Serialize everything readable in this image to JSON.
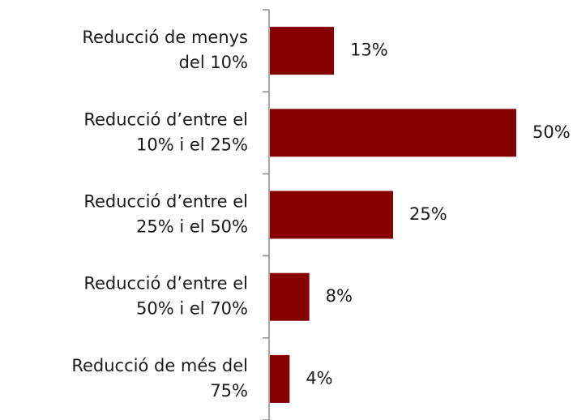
{
  "chart_data": {
    "type": "bar",
    "orientation": "horizontal",
    "categories": [
      "Reducció de menys\ndel 10%",
      "Reducció d’entre el\n10% i el 25%",
      "Reducció d’entre el\n25% i el 50%",
      "Reducció d’entre el\n50% i el 70%",
      "Reducció de més del\n75%"
    ],
    "values": [
      13,
      50,
      25,
      8,
      4
    ],
    "value_labels": [
      "13%",
      "50%",
      "25%",
      "8%",
      "4%"
    ],
    "color": "#870000"
  }
}
